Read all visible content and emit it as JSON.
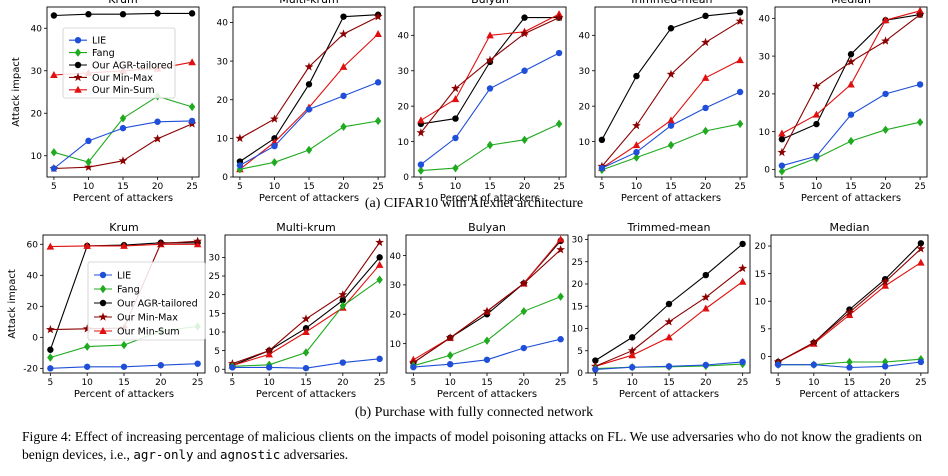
{
  "figure": {
    "caption_a": "(a) CIFAR10 with Alexnet architecture",
    "caption_b": "(b) Purchase with fully connected network",
    "caption_label": "Figure 4:",
    "caption_text": " Effect of increasing percentage of malicious clients on the impacts of model poisoning attacks on FL. We use adversaries who do not know the gradients on benign devices, i.e., ",
    "caption_code1": "agr-only",
    "caption_and": " and ",
    "caption_code2": "agnostic",
    "caption_end": " adversaries."
  },
  "legend": [
    "LIE",
    "Fang",
    "Our AGR-tailored",
    "Our Min-Max",
    "Our Min-Sum"
  ],
  "series_colors": [
    "#1f4fd8",
    "#1faa1f",
    "#000000",
    "#8b0000",
    "#e01010"
  ],
  "chart_data": [
    {
      "type": "line",
      "title": "Krum",
      "xlabel": "Percent of attackers",
      "ylabel": "Attack impact",
      "x": [
        5,
        10,
        15,
        20,
        25
      ],
      "xlim": [
        4,
        26
      ],
      "ylim": [
        5,
        45
      ],
      "yticks": [
        10,
        20,
        30,
        40
      ],
      "series": [
        {
          "name": "LIE",
          "values": [
            7,
            13.5,
            16.5,
            18,
            18.2
          ]
        },
        {
          "name": "Fang",
          "values": [
            10.8,
            8.5,
            18.8,
            24,
            21.5
          ]
        },
        {
          "name": "Our AGR-tailored",
          "values": [
            43,
            43.3,
            43.3,
            43.5,
            43.5
          ]
        },
        {
          "name": "Our Min-Max",
          "values": [
            7,
            7.3,
            8.8,
            14,
            17.5
          ]
        },
        {
          "name": "Our Min-Sum",
          "values": [
            29,
            29.5,
            30,
            30.5,
            32
          ]
        }
      ]
    },
    {
      "type": "line",
      "title": "Multi-krum",
      "xlabel": "Percent of attackers",
      "ylabel": "",
      "x": [
        5,
        10,
        15,
        20,
        25
      ],
      "xlim": [
        4,
        26
      ],
      "ylim": [
        0,
        44
      ],
      "yticks": [
        0,
        10,
        20,
        30,
        40
      ],
      "series": [
        {
          "name": "LIE",
          "values": [
            3,
            8,
            17.5,
            21,
            24.5
          ]
        },
        {
          "name": "Fang",
          "values": [
            2,
            3.8,
            7,
            13,
            14.5
          ]
        },
        {
          "name": "Our AGR-tailored",
          "values": [
            4,
            10,
            24,
            41.5,
            42
          ]
        },
        {
          "name": "Our Min-Max",
          "values": [
            10,
            15,
            28.5,
            37,
            41.5
          ]
        },
        {
          "name": "Our Min-Sum",
          "values": [
            2,
            9,
            18,
            28.5,
            37
          ]
        }
      ]
    },
    {
      "type": "line",
      "title": "Bulyan",
      "xlabel": "Percent of attackers",
      "ylabel": "",
      "x": [
        5,
        10,
        15,
        20,
        25
      ],
      "xlim": [
        4,
        26
      ],
      "ylim": [
        0,
        48
      ],
      "yticks": [
        0,
        10,
        20,
        30,
        40
      ],
      "series": [
        {
          "name": "LIE",
          "values": [
            3.5,
            11,
            25,
            30,
            35
          ]
        },
        {
          "name": "Fang",
          "values": [
            1.8,
            2.5,
            9,
            10.5,
            15
          ]
        },
        {
          "name": "Our AGR-tailored",
          "values": [
            15,
            16.5,
            32.5,
            45,
            45
          ]
        },
        {
          "name": "Our Min-Max",
          "values": [
            12.5,
            25,
            33,
            40.5,
            45
          ]
        },
        {
          "name": "Our Min-Sum",
          "values": [
            16,
            22,
            40,
            41,
            46
          ]
        }
      ]
    },
    {
      "type": "line",
      "title": "Trimmed-mean",
      "xlabel": "Percent of attackers",
      "ylabel": "",
      "x": [
        5,
        10,
        15,
        20,
        25
      ],
      "xlim": [
        4,
        26
      ],
      "ylim": [
        0,
        48
      ],
      "yticks": [
        10,
        20,
        30,
        40
      ],
      "series": [
        {
          "name": "LIE",
          "values": [
            2.5,
            7,
            14.5,
            19.5,
            24
          ]
        },
        {
          "name": "Fang",
          "values": [
            2,
            5.5,
            9,
            13,
            15
          ]
        },
        {
          "name": "Our AGR-tailored",
          "values": [
            10.5,
            28.5,
            42,
            45.5,
            46.5
          ]
        },
        {
          "name": "Our Min-Max",
          "values": [
            3,
            14.5,
            29,
            38,
            44
          ]
        },
        {
          "name": "Our Min-Sum",
          "values": [
            2.5,
            9,
            16,
            28,
            33
          ]
        }
      ]
    },
    {
      "type": "line",
      "title": "Median",
      "xlabel": "Percent of attackers",
      "ylabel": "",
      "x": [
        5,
        10,
        15,
        20,
        25
      ],
      "xlim": [
        4,
        26
      ],
      "ylim": [
        -2,
        43
      ],
      "yticks": [
        0,
        10,
        20,
        30,
        40
      ],
      "series": [
        {
          "name": "LIE",
          "values": [
            1,
            3.5,
            14.5,
            20,
            22.5
          ]
        },
        {
          "name": "Fang",
          "values": [
            -0.5,
            3,
            7.5,
            10.5,
            12.5
          ]
        },
        {
          "name": "Our AGR-tailored",
          "values": [
            8,
            12,
            30.5,
            39.5,
            41
          ]
        },
        {
          "name": "Our Min-Max",
          "values": [
            4.5,
            22,
            28.5,
            34,
            41
          ]
        },
        {
          "name": "Our Min-Sum",
          "values": [
            9.5,
            14.5,
            22.5,
            39.5,
            42
          ]
        }
      ]
    },
    {
      "type": "line",
      "title": "Krum",
      "xlabel": "Percent of attackers",
      "ylabel": "Attack impact",
      "x": [
        5,
        10,
        15,
        20,
        25
      ],
      "xlim": [
        4,
        26
      ],
      "ylim": [
        -23,
        66
      ],
      "yticks": [
        -20,
        0,
        20,
        40,
        60
      ],
      "series": [
        {
          "name": "LIE",
          "values": [
            -20,
            -19,
            -19,
            -18,
            -17
          ]
        },
        {
          "name": "Fang",
          "values": [
            -13,
            -6,
            -5,
            4,
            7
          ]
        },
        {
          "name": "Our AGR-tailored",
          "values": [
            -8,
            59,
            59.5,
            61,
            61
          ]
        },
        {
          "name": "Our Min-Max",
          "values": [
            5,
            5.5,
            6,
            60.5,
            62
          ]
        },
        {
          "name": "Our Min-Sum",
          "values": [
            58.5,
            59,
            59,
            60,
            60
          ]
        }
      ]
    },
    {
      "type": "line",
      "title": "Multi-krum",
      "xlabel": "Percent of attackers",
      "ylabel": "",
      "x": [
        5,
        10,
        15,
        20,
        25
      ],
      "xlim": [
        4,
        26
      ],
      "ylim": [
        -1,
        36
      ],
      "yticks": [
        0,
        5,
        10,
        15,
        20,
        25,
        30
      ],
      "series": [
        {
          "name": "LIE",
          "values": [
            0.5,
            0.5,
            0.3,
            1.8,
            2.8
          ]
        },
        {
          "name": "Fang",
          "values": [
            0.8,
            1.2,
            4.5,
            17,
            24
          ]
        },
        {
          "name": "Our AGR-tailored",
          "values": [
            1,
            5,
            11,
            18.5,
            30
          ]
        },
        {
          "name": "Our Min-Max",
          "values": [
            1.5,
            5,
            13.5,
            20,
            34
          ]
        },
        {
          "name": "Our Min-Sum",
          "values": [
            1,
            4,
            10,
            16.5,
            28
          ]
        }
      ]
    },
    {
      "type": "line",
      "title": "Bulyan",
      "xlabel": "Percent of attackers",
      "ylabel": "",
      "x": [
        5,
        10,
        15,
        20,
        25
      ],
      "xlim": [
        4,
        26
      ],
      "ylim": [
        0,
        47
      ],
      "yticks": [
        10,
        20,
        30,
        40
      ],
      "series": [
        {
          "name": "LIE",
          "values": [
            2,
            3,
            4.5,
            8.5,
            11.5
          ]
        },
        {
          "name": "Fang",
          "values": [
            2.5,
            6,
            11,
            21,
            26
          ]
        },
        {
          "name": "Our AGR-tailored",
          "values": [
            3.5,
            12,
            20,
            30.5,
            45
          ]
        },
        {
          "name": "Our Min-Max",
          "values": [
            3.5,
            12,
            21,
            30.5,
            42
          ]
        },
        {
          "name": "Our Min-Sum",
          "values": [
            4.5,
            12,
            21,
            30.5,
            45.5
          ]
        }
      ]
    },
    {
      "type": "line",
      "title": "Trimmed-mean",
      "xlabel": "Percent of attackers",
      "ylabel": "",
      "x": [
        5,
        10,
        15,
        20,
        25
      ],
      "xlim": [
        4,
        26
      ],
      "ylim": [
        0,
        31
      ],
      "yticks": [
        0,
        5,
        10,
        15,
        20,
        25,
        30
      ],
      "series": [
        {
          "name": "LIE",
          "values": [
            0.8,
            1.3,
            1.5,
            1.8,
            2.5
          ]
        },
        {
          "name": "Fang",
          "values": [
            1,
            1.3,
            1.4,
            1.6,
            2
          ]
        },
        {
          "name": "Our AGR-tailored",
          "values": [
            2.8,
            8,
            15.5,
            22,
            29
          ]
        },
        {
          "name": "Our Min-Max",
          "values": [
            1.5,
            5,
            11.5,
            17,
            23.5
          ]
        },
        {
          "name": "Our Min-Sum",
          "values": [
            1.5,
            4,
            8,
            14.5,
            20.5
          ]
        }
      ]
    },
    {
      "type": "line",
      "title": "Median",
      "xlabel": "Percent of attackers",
      "ylabel": "",
      "x": [
        5,
        10,
        15,
        20,
        25
      ],
      "xlim": [
        4,
        26
      ],
      "ylim": [
        -3,
        22
      ],
      "yticks": [
        0,
        5,
        10,
        15,
        20
      ],
      "series": [
        {
          "name": "LIE",
          "values": [
            -1.5,
            -1.5,
            -2,
            -1.8,
            -1
          ]
        },
        {
          "name": "Fang",
          "values": [
            -1.5,
            -1.5,
            -1,
            -1,
            -0.5
          ]
        },
        {
          "name": "Our AGR-tailored",
          "values": [
            -1,
            2.5,
            8.5,
            14,
            20.5
          ]
        },
        {
          "name": "Our Min-Max",
          "values": [
            -1,
            2.5,
            8,
            13.5,
            19.5
          ]
        },
        {
          "name": "Our Min-Sum",
          "values": [
            -1,
            2.3,
            7.5,
            12.8,
            17
          ]
        }
      ]
    }
  ]
}
